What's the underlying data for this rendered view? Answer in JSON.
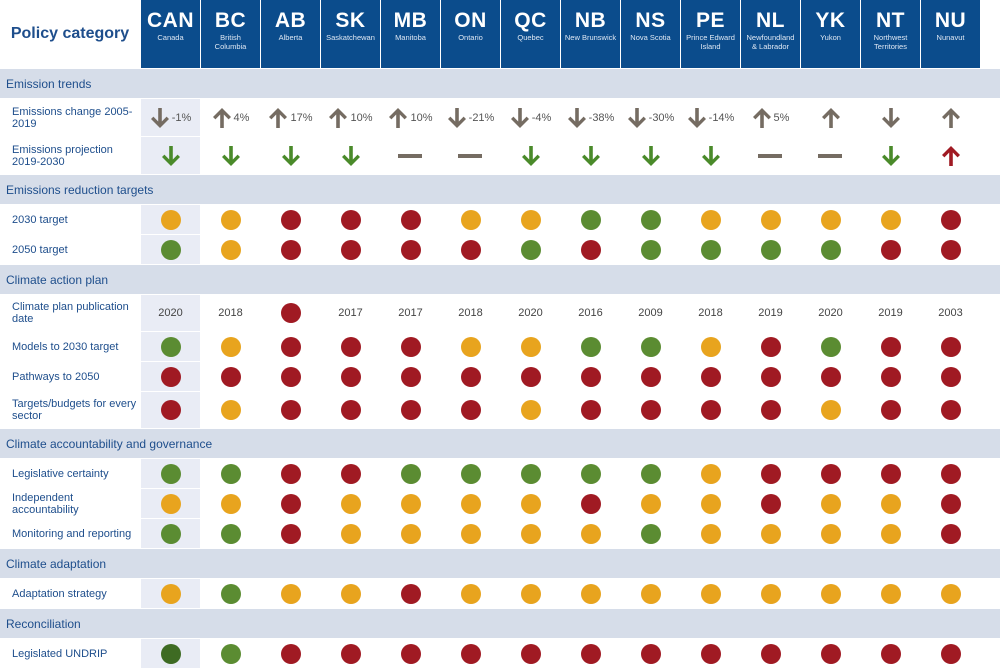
{
  "header": {
    "label": "Policy category"
  },
  "jurisdictions": [
    {
      "code": "CAN",
      "name": "Canada"
    },
    {
      "code": "BC",
      "name": "British Columbia"
    },
    {
      "code": "AB",
      "name": "Alberta"
    },
    {
      "code": "SK",
      "name": "Saskatchewan"
    },
    {
      "code": "MB",
      "name": "Manitoba"
    },
    {
      "code": "ON",
      "name": "Ontario"
    },
    {
      "code": "QC",
      "name": "Quebec"
    },
    {
      "code": "NB",
      "name": "New Brunswick"
    },
    {
      "code": "NS",
      "name": "Nova Scotia"
    },
    {
      "code": "PE",
      "name": "Prince Edward Island"
    },
    {
      "code": "NL",
      "name": "Newfoundland & Labrador"
    },
    {
      "code": "YK",
      "name": "Yukon"
    },
    {
      "code": "NT",
      "name": "Northwest Territories"
    },
    {
      "code": "NU",
      "name": "Nunavut"
    }
  ],
  "colors": {
    "green": "#5b8c32",
    "dark_green": "#3e6b23",
    "amber": "#e8a41e",
    "red": "#a01a23",
    "arrow_gray": "#756c62",
    "arrow_green": "#4a8a2a",
    "arrow_red": "#a01a23",
    "header_blue": "#0b4c8c",
    "section_bg": "#d6dde9"
  },
  "chart_data": {
    "type": "table",
    "sections": [
      {
        "title": "Emission trends",
        "rows": [
          {
            "label": "Emissions change 2005-2019",
            "kind": "trend",
            "cells": [
              {
                "dir": "down",
                "color": "arrow_gray",
                "text": "-1%"
              },
              {
                "dir": "up",
                "color": "arrow_gray",
                "text": "4%"
              },
              {
                "dir": "up",
                "color": "arrow_gray",
                "text": "17%"
              },
              {
                "dir": "up",
                "color": "arrow_gray",
                "text": "10%"
              },
              {
                "dir": "up",
                "color": "arrow_gray",
                "text": "10%"
              },
              {
                "dir": "down",
                "color": "arrow_gray",
                "text": "-21%"
              },
              {
                "dir": "down",
                "color": "arrow_gray",
                "text": "-4%"
              },
              {
                "dir": "down",
                "color": "arrow_gray",
                "text": "-38%"
              },
              {
                "dir": "down",
                "color": "arrow_gray",
                "text": "-30%"
              },
              {
                "dir": "down",
                "color": "arrow_gray",
                "text": "-14%"
              },
              {
                "dir": "up",
                "color": "arrow_gray",
                "text": "5%"
              },
              {
                "dir": "up",
                "color": "arrow_gray",
                "text": ""
              },
              {
                "dir": "down",
                "color": "arrow_gray",
                "text": ""
              },
              {
                "dir": "up",
                "color": "arrow_gray",
                "text": ""
              }
            ]
          },
          {
            "label": "Emissions projection 2019-2030",
            "kind": "trend",
            "cells": [
              {
                "dir": "down",
                "color": "arrow_green",
                "text": ""
              },
              {
                "dir": "down",
                "color": "arrow_green",
                "text": ""
              },
              {
                "dir": "down",
                "color": "arrow_green",
                "text": ""
              },
              {
                "dir": "down",
                "color": "arrow_green",
                "text": ""
              },
              {
                "dir": "flat",
                "color": "arrow_gray",
                "text": ""
              },
              {
                "dir": "flat",
                "color": "arrow_gray",
                "text": ""
              },
              {
                "dir": "down",
                "color": "arrow_green",
                "text": ""
              },
              {
                "dir": "down",
                "color": "arrow_green",
                "text": ""
              },
              {
                "dir": "down",
                "color": "arrow_green",
                "text": ""
              },
              {
                "dir": "down",
                "color": "arrow_green",
                "text": ""
              },
              {
                "dir": "flat",
                "color": "arrow_gray",
                "text": ""
              },
              {
                "dir": "flat",
                "color": "arrow_gray",
                "text": ""
              },
              {
                "dir": "down",
                "color": "arrow_green",
                "text": ""
              },
              {
                "dir": "up",
                "color": "arrow_red",
                "text": ""
              }
            ]
          }
        ]
      },
      {
        "title": "Emissions reduction targets",
        "rows": [
          {
            "label": "2030 target",
            "kind": "status",
            "cells": [
              "amber",
              "amber",
              "red",
              "red",
              "red",
              "amber",
              "amber",
              "green",
              "green",
              "amber",
              "amber",
              "amber",
              "amber",
              "red"
            ]
          },
          {
            "label": "2050 target",
            "kind": "status",
            "cells": [
              "green",
              "amber",
              "red",
              "red",
              "red",
              "red",
              "green",
              "red",
              "green",
              "green",
              "green",
              "green",
              "red",
              "red"
            ]
          }
        ]
      },
      {
        "title": "Climate action plan",
        "rows": [
          {
            "label": "Climate plan publication date",
            "kind": "mixed",
            "cells": [
              "2020",
              "2018",
              "red",
              "2017",
              "2017",
              "2018",
              "2020",
              "2016",
              "2009",
              "2018",
              "2019",
              "2020",
              "2019",
              "2003"
            ]
          },
          {
            "label": "Models to 2030 target",
            "kind": "status",
            "cells": [
              "green",
              "amber",
              "red",
              "red",
              "red",
              "amber",
              "amber",
              "green",
              "green",
              "amber",
              "red",
              "green",
              "red",
              "red"
            ]
          },
          {
            "label": "Pathways to 2050",
            "kind": "status",
            "cells": [
              "red",
              "red",
              "red",
              "red",
              "red",
              "red",
              "red",
              "red",
              "red",
              "red",
              "red",
              "red",
              "red",
              "red"
            ]
          },
          {
            "label": "Targets/budgets for every sector",
            "kind": "status",
            "cells": [
              "red",
              "amber",
              "red",
              "red",
              "red",
              "red",
              "amber",
              "red",
              "red",
              "red",
              "red",
              "amber",
              "red",
              "red"
            ]
          }
        ]
      },
      {
        "title": "Climate accountability and governance",
        "rows": [
          {
            "label": "Legislative certainty",
            "kind": "status",
            "cells": [
              "green",
              "green",
              "red",
              "red",
              "green",
              "green",
              "green",
              "green",
              "green",
              "amber",
              "red",
              "red",
              "red",
              "red"
            ]
          },
          {
            "label": "Independent accountability",
            "kind": "status",
            "cells": [
              "amber",
              "amber",
              "red",
              "amber",
              "amber",
              "amber",
              "amber",
              "red",
              "amber",
              "amber",
              "red",
              "amber",
              "amber",
              "red"
            ]
          },
          {
            "label": "Monitoring and reporting",
            "kind": "status",
            "cells": [
              "green",
              "green",
              "red",
              "amber",
              "amber",
              "amber",
              "amber",
              "amber",
              "green",
              "amber",
              "amber",
              "amber",
              "amber",
              "red"
            ]
          }
        ]
      },
      {
        "title": "Climate adaptation",
        "rows": [
          {
            "label": "Adaptation strategy",
            "kind": "status",
            "cells": [
              "amber",
              "green",
              "amber",
              "amber",
              "red",
              "amber",
              "amber",
              "amber",
              "amber",
              "amber",
              "amber",
              "amber",
              "amber",
              "amber"
            ]
          }
        ]
      },
      {
        "title": "Reconciliation",
        "rows": [
          {
            "label": "Legislated UNDRIP",
            "kind": "status",
            "cells": [
              "dark_green",
              "green",
              "red",
              "red",
              "red",
              "red",
              "red",
              "red",
              "red",
              "red",
              "red",
              "red",
              "red",
              "red"
            ]
          }
        ]
      }
    ]
  }
}
